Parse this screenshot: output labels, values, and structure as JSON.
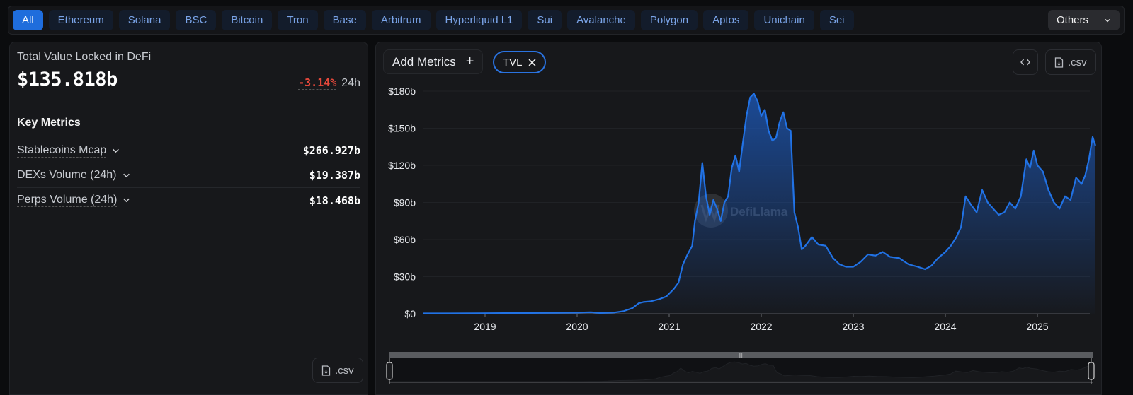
{
  "chain_tabs": [
    {
      "label": "All",
      "active": true
    },
    {
      "label": "Ethereum"
    },
    {
      "label": "Solana"
    },
    {
      "label": "BSC"
    },
    {
      "label": "Bitcoin"
    },
    {
      "label": "Tron"
    },
    {
      "label": "Base"
    },
    {
      "label": "Arbitrum"
    },
    {
      "label": "Hyperliquid L1"
    },
    {
      "label": "Sui"
    },
    {
      "label": "Avalanche"
    },
    {
      "label": "Polygon"
    },
    {
      "label": "Aptos"
    },
    {
      "label": "Unichain"
    },
    {
      "label": "Sei"
    }
  ],
  "others_dropdown": {
    "label": "Others",
    "icon": "chevron-down-icon"
  },
  "stats": {
    "tvl_label": "Total Value Locked in DeFi",
    "tvl_value": "$135.818b",
    "change_pct": "-3.14%",
    "change_period": "24h",
    "key_metrics_title": "Key Metrics",
    "metrics": [
      {
        "label": "Stablecoins Mcap",
        "value": "$266.927b"
      },
      {
        "label": "DEXs Volume (24h)",
        "value": "$19.387b"
      },
      {
        "label": "Perps Volume (24h)",
        "value": "$18.468b"
      }
    ],
    "csv_label": ".csv"
  },
  "chart_panel": {
    "add_metrics_label": "Add Metrics",
    "add_metrics_icon": "plus-icon",
    "selected_metric": "TVL",
    "embed_icon": "code-icon",
    "csv_label": ".csv",
    "watermark": "DefiLlama"
  },
  "colors": {
    "accent": "#1f6ddc",
    "line": "#2172e5",
    "negative": "#e5483b",
    "panel": "#17181b",
    "background": "#0b0c0e"
  },
  "chart_data": {
    "type": "area",
    "title": "",
    "xlabel": "",
    "ylabel": "",
    "ylim": [
      0,
      180
    ],
    "y_unit": "b",
    "yticks": [
      "$0",
      "$30b",
      "$60b",
      "$90b",
      "$120b",
      "$150b",
      "$180b"
    ],
    "xticks": [
      "2019",
      "2020",
      "2021",
      "2022",
      "2023",
      "2024",
      "2025"
    ],
    "grid": true,
    "legend": null,
    "series": [
      {
        "name": "TVL",
        "x": [
          2018.33,
          2018.6,
          2018.9,
          2019.2,
          2019.5,
          2019.8,
          2020.0,
          2020.15,
          2020.25,
          2020.4,
          2020.5,
          2020.6,
          2020.67,
          2020.72,
          2020.8,
          2020.9,
          2020.97,
          2021.05,
          2021.1,
          2021.15,
          2021.2,
          2021.25,
          2021.28,
          2021.32,
          2021.36,
          2021.4,
          2021.44,
          2021.48,
          2021.52,
          2021.56,
          2021.6,
          2021.64,
          2021.68,
          2021.72,
          2021.76,
          2021.8,
          2021.84,
          2021.88,
          2021.92,
          2021.96,
          2022.0,
          2022.04,
          2022.08,
          2022.12,
          2022.16,
          2022.2,
          2022.24,
          2022.28,
          2022.32,
          2022.36,
          2022.4,
          2022.44,
          2022.48,
          2022.55,
          2022.62,
          2022.7,
          2022.78,
          2022.85,
          2022.92,
          2023.0,
          2023.08,
          2023.16,
          2023.24,
          2023.32,
          2023.4,
          2023.5,
          2023.6,
          2023.7,
          2023.78,
          2023.85,
          2023.92,
          2024.0,
          2024.06,
          2024.12,
          2024.17,
          2024.22,
          2024.28,
          2024.34,
          2024.4,
          2024.46,
          2024.52,
          2024.58,
          2024.64,
          2024.7,
          2024.76,
          2024.82,
          2024.88,
          2024.92,
          2024.96,
          2025.0,
          2025.06,
          2025.12,
          2025.18,
          2025.24,
          2025.3,
          2025.36,
          2025.42,
          2025.48,
          2025.52,
          2025.56,
          2025.6,
          2025.63
        ],
        "values": [
          0.3,
          0.3,
          0.4,
          0.5,
          0.6,
          0.8,
          0.9,
          1.2,
          0.6,
          1.0,
          2.0,
          4.5,
          8.5,
          9.5,
          10,
          12,
          14,
          20,
          25,
          40,
          48,
          55,
          75,
          90,
          122,
          95,
          80,
          92,
          85,
          75,
          90,
          95,
          118,
          128,
          115,
          138,
          160,
          175,
          178,
          172,
          160,
          165,
          148,
          140,
          142,
          155,
          163,
          150,
          148,
          82,
          70,
          52,
          55,
          62,
          56,
          55,
          45,
          40,
          38,
          38,
          42,
          48,
          47,
          50,
          46,
          45,
          40,
          38,
          36,
          39,
          45,
          50,
          55,
          62,
          70,
          95,
          88,
          82,
          100,
          90,
          85,
          80,
          82,
          90,
          85,
          95,
          125,
          118,
          132,
          120,
          115,
          100,
          90,
          85,
          95,
          92,
          110,
          105,
          112,
          125,
          143,
          136
        ]
      }
    ]
  }
}
